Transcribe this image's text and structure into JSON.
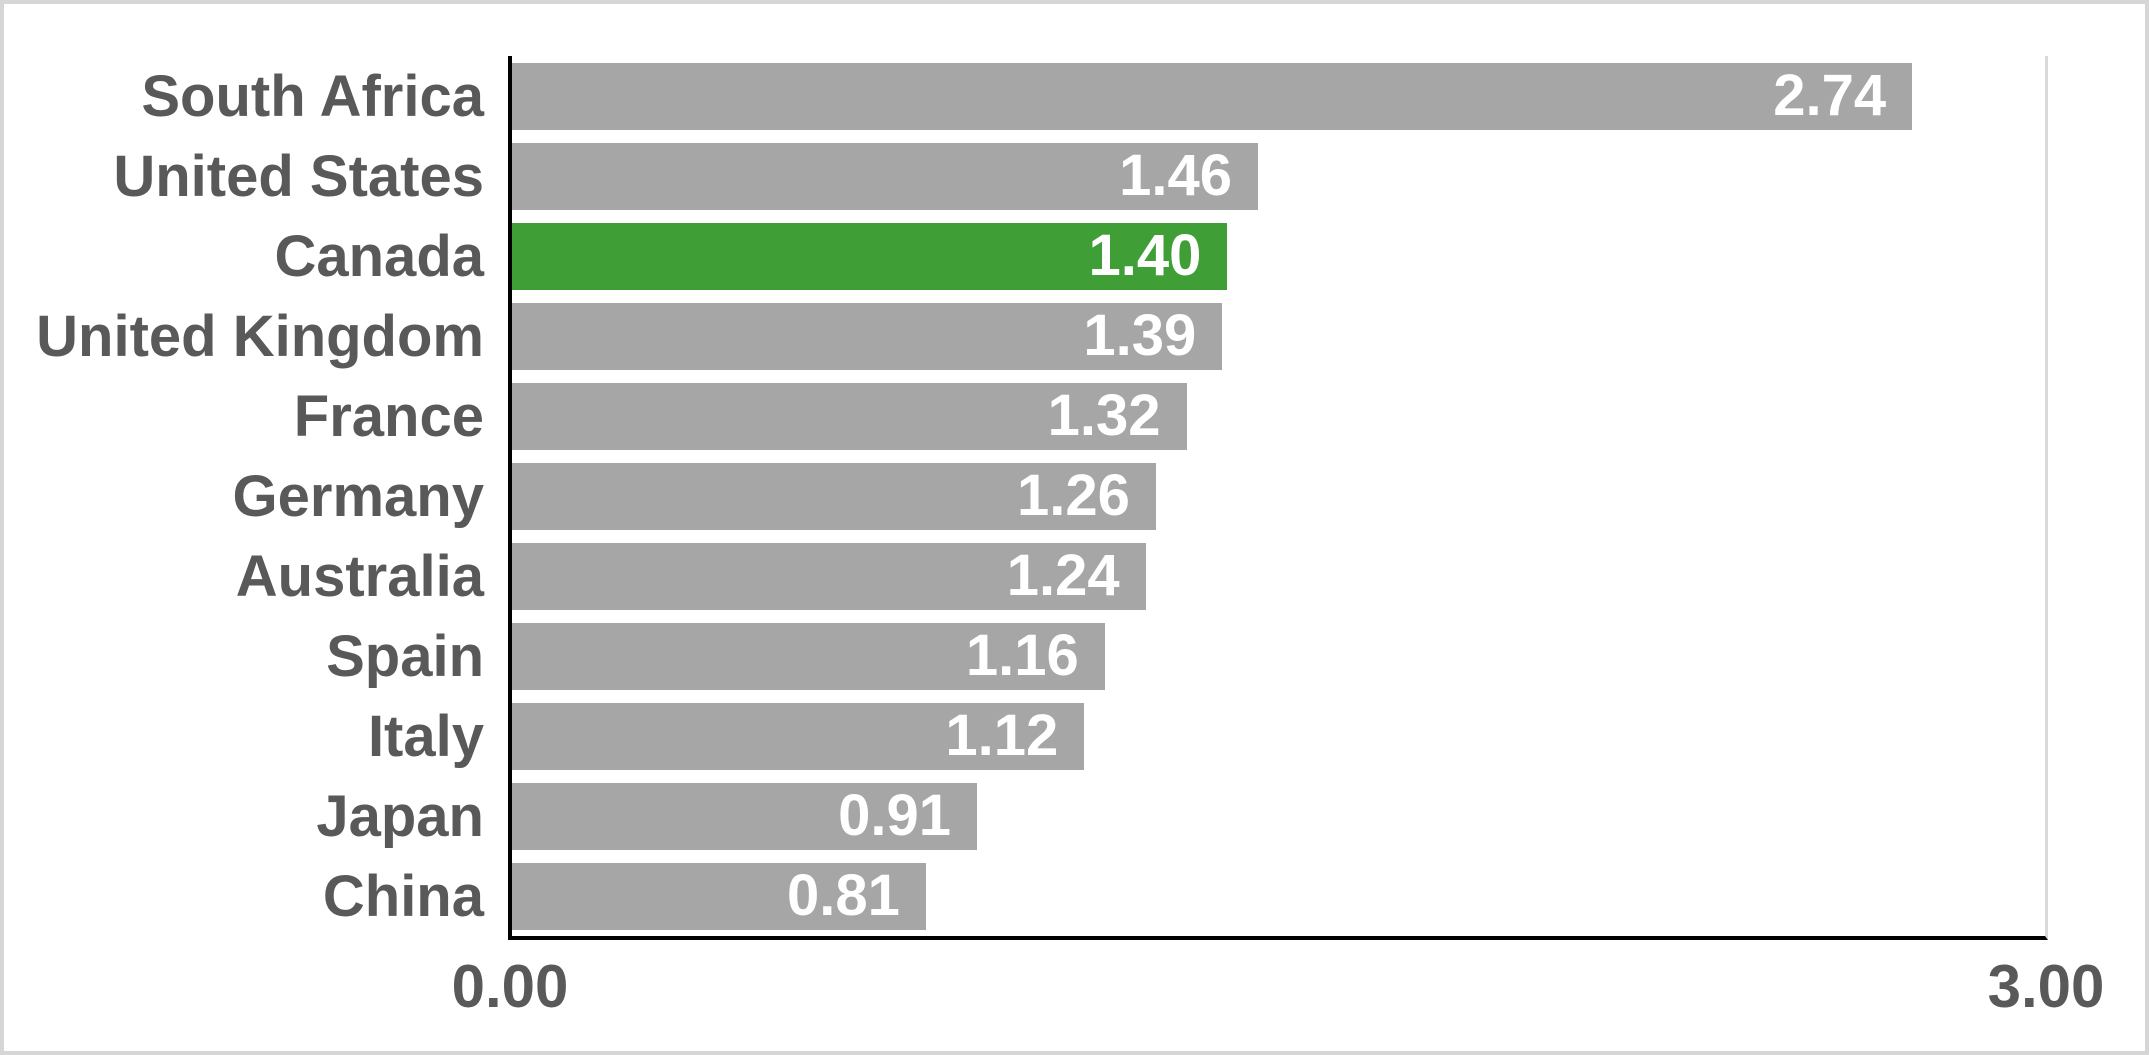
{
  "chart_data": {
    "type": "bar",
    "orientation": "horizontal",
    "title": "",
    "categories": [
      "South Africa",
      "United States",
      "Canada",
      "United Kingdom",
      "France",
      "Germany",
      "Australia",
      "Spain",
      "Italy",
      "Japan",
      "China"
    ],
    "values": [
      2.74,
      1.46,
      1.4,
      1.39,
      1.32,
      1.26,
      1.24,
      1.16,
      1.12,
      0.91,
      0.81
    ],
    "value_labels": [
      "2.74",
      "1.46",
      "1.40",
      "1.39",
      "1.32",
      "1.26",
      "1.24",
      "1.16",
      "1.12",
      "0.91",
      "0.81"
    ],
    "highlighted_category": "Canada",
    "xlim": [
      0,
      3
    ],
    "x_ticks": [
      "0.00",
      "3.00"
    ],
    "grid": false,
    "legend": false,
    "colors": {
      "bar_default": "#A6A6A6",
      "bar_highlight": "#3F9E35",
      "value_label": "#FFFFFF",
      "category_label": "#595959",
      "tick_label": "#595959",
      "axis_line": "#000000",
      "plot_right_border": "#D9D9D9",
      "frame_border": "#D6D6D6"
    }
  }
}
